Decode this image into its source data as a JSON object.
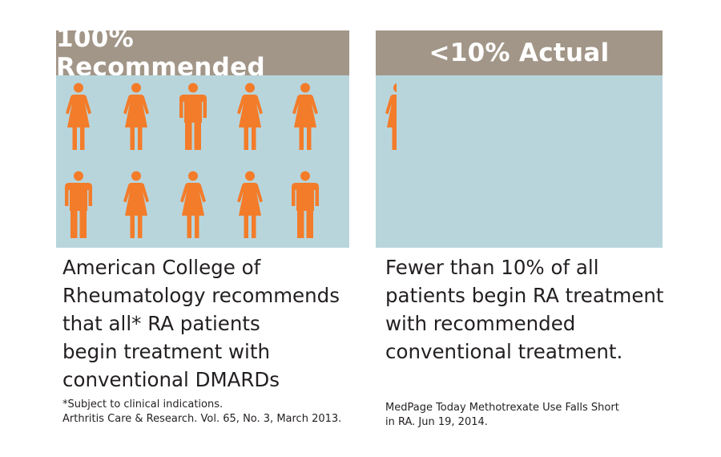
{
  "colors": {
    "header_bg": "#a29688",
    "field_bg": "#b8d5dc",
    "figure": "#f37c2a"
  },
  "left": {
    "header": "100% Recommended",
    "people": [
      "female-icon",
      "female-icon",
      "male-icon",
      "female-icon",
      "female-icon",
      "male-icon",
      "female-icon",
      "female-icon",
      "female-icon",
      "male-icon"
    ],
    "body": [
      "American College of",
      "Rheumatology recommends",
      "that all* RA patients",
      "begin treatment with",
      "conventional DMARDs"
    ],
    "footnote": [
      "*Subject to clinical indications.",
      "Arthritis Care & Research. Vol. 65, No. 3, March 2013."
    ]
  },
  "right": {
    "header": "<10% Actual",
    "visible_fraction": 0.1,
    "people": [
      "female-icon"
    ],
    "body": [
      "Fewer than 10% of all",
      "patients begin RA treatment",
      "with recommended",
      "conventional treatment."
    ],
    "footnote": [
      "MedPage Today Methotrexate Use Falls Short",
      "in RA. Jun 19, 2014."
    ]
  }
}
